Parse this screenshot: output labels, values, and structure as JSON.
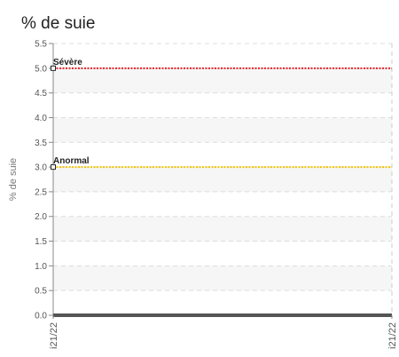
{
  "chart_data": {
    "type": "line",
    "title": "% de suie",
    "ylabel": "% de suie",
    "xlabel": "",
    "ylim": [
      0,
      5.5
    ],
    "yticks": [
      "0.0",
      "0.5",
      "1.0",
      "1.5",
      "2.0",
      "2.5",
      "3.0",
      "3.5",
      "4.0",
      "4.5",
      "5.0",
      "5.5"
    ],
    "x_ticks": [
      "i21/22",
      "i21/22"
    ],
    "grid": true,
    "thresholds": [
      {
        "label": "Sévère",
        "value": 5.0,
        "color": "#e8202a"
      },
      {
        "label": "Anormal",
        "value": 3.0,
        "color": "#f2c200"
      }
    ],
    "series": [
      {
        "values": [
          0,
          0
        ],
        "color": "#555555"
      }
    ]
  }
}
